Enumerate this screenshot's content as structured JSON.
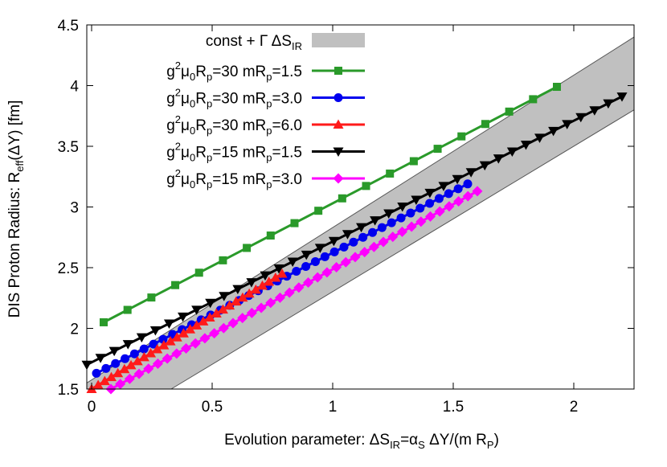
{
  "chart_data": {
    "type": "line",
    "xlabel": {
      "pre": "Evolution parameter: ΔS",
      "sub": "IR",
      "mid": "=α",
      "sub2": "S",
      "post": " ΔY/(m R",
      "sub3": "P",
      "end": ")"
    },
    "ylabel": {
      "pre": "DIS Proton Radius: R",
      "sub": "eff",
      "post": "(ΔY)   [fm]"
    },
    "xlim": [
      -0.02,
      2.25
    ],
    "ylim": [
      1.5,
      4.5
    ],
    "xticks": [
      "0",
      "0.5",
      "1",
      "1.5",
      "2"
    ],
    "yticks": [
      "1.5",
      "2",
      "2.5",
      "3",
      "3.5",
      "4",
      "4.5"
    ],
    "legend_position": "top-left",
    "band": {
      "label": {
        "pre": "const + Γ ΔS",
        "sub": "IR"
      },
      "color": "#c0c0c0",
      "lower": [
        [
          0.33,
          1.5
        ],
        [
          2.25,
          3.8
        ]
      ],
      "upper": [
        [
          -0.02,
          1.55
        ],
        [
          2.25,
          4.4
        ]
      ]
    },
    "series": [
      {
        "label": {
          "a": "g",
          "sup": "2",
          "b": "μ",
          "sub0": "0",
          "c": "R",
          "sub1": "p",
          "d": "=30   mR",
          "sub2": "p",
          "e": "=1.5"
        },
        "color": "#2a9a2a",
        "marker": "square",
        "x0": 0.05,
        "x1": 1.93,
        "y0": 2.05,
        "y1": 3.99,
        "n": 20
      },
      {
        "label": {
          "a": "g",
          "sup": "2",
          "b": "μ",
          "sub0": "0",
          "c": "R",
          "sub1": "p",
          "d": "=30   mR",
          "sub2": "p",
          "e": "=3.0"
        },
        "color": "#0000ee",
        "marker": "circle",
        "x0": 0.02,
        "x1": 1.56,
        "y0": 1.63,
        "y1": 3.19,
        "n": 40
      },
      {
        "label": {
          "a": "g",
          "sup": "2",
          "b": "μ",
          "sub0": "0",
          "c": "R",
          "sub1": "p",
          "d": "=30   mR",
          "sub2": "p",
          "e": "=6.0"
        },
        "color": "#ff1a1a",
        "marker": "triangle",
        "x0": 0.0,
        "x1": 0.79,
        "y0": 1.5,
        "y1": 2.45,
        "n": 30
      },
      {
        "label": {
          "a": "g",
          "sup": "2",
          "b": "μ",
          "sub0": "0",
          "c": "R",
          "sub1": "p",
          "d": "=15   mR",
          "sub2": "p",
          "e": "=1.5"
        },
        "color": "#000000",
        "marker": "triangle-down",
        "x0": -0.02,
        "x1": 2.2,
        "y0": 1.7,
        "y1": 3.91,
        "n": 40
      },
      {
        "label": {
          "a": "g",
          "sup": "2",
          "b": "μ",
          "sub0": "0",
          "c": "R",
          "sub1": "p",
          "d": "=15   mR",
          "sub2": "p",
          "e": "=3.0"
        },
        "color": "#ff00ff",
        "marker": "diamond",
        "x0": 0.08,
        "x1": 1.6,
        "y0": 1.5,
        "y1": 3.13,
        "n": 40
      }
    ]
  }
}
